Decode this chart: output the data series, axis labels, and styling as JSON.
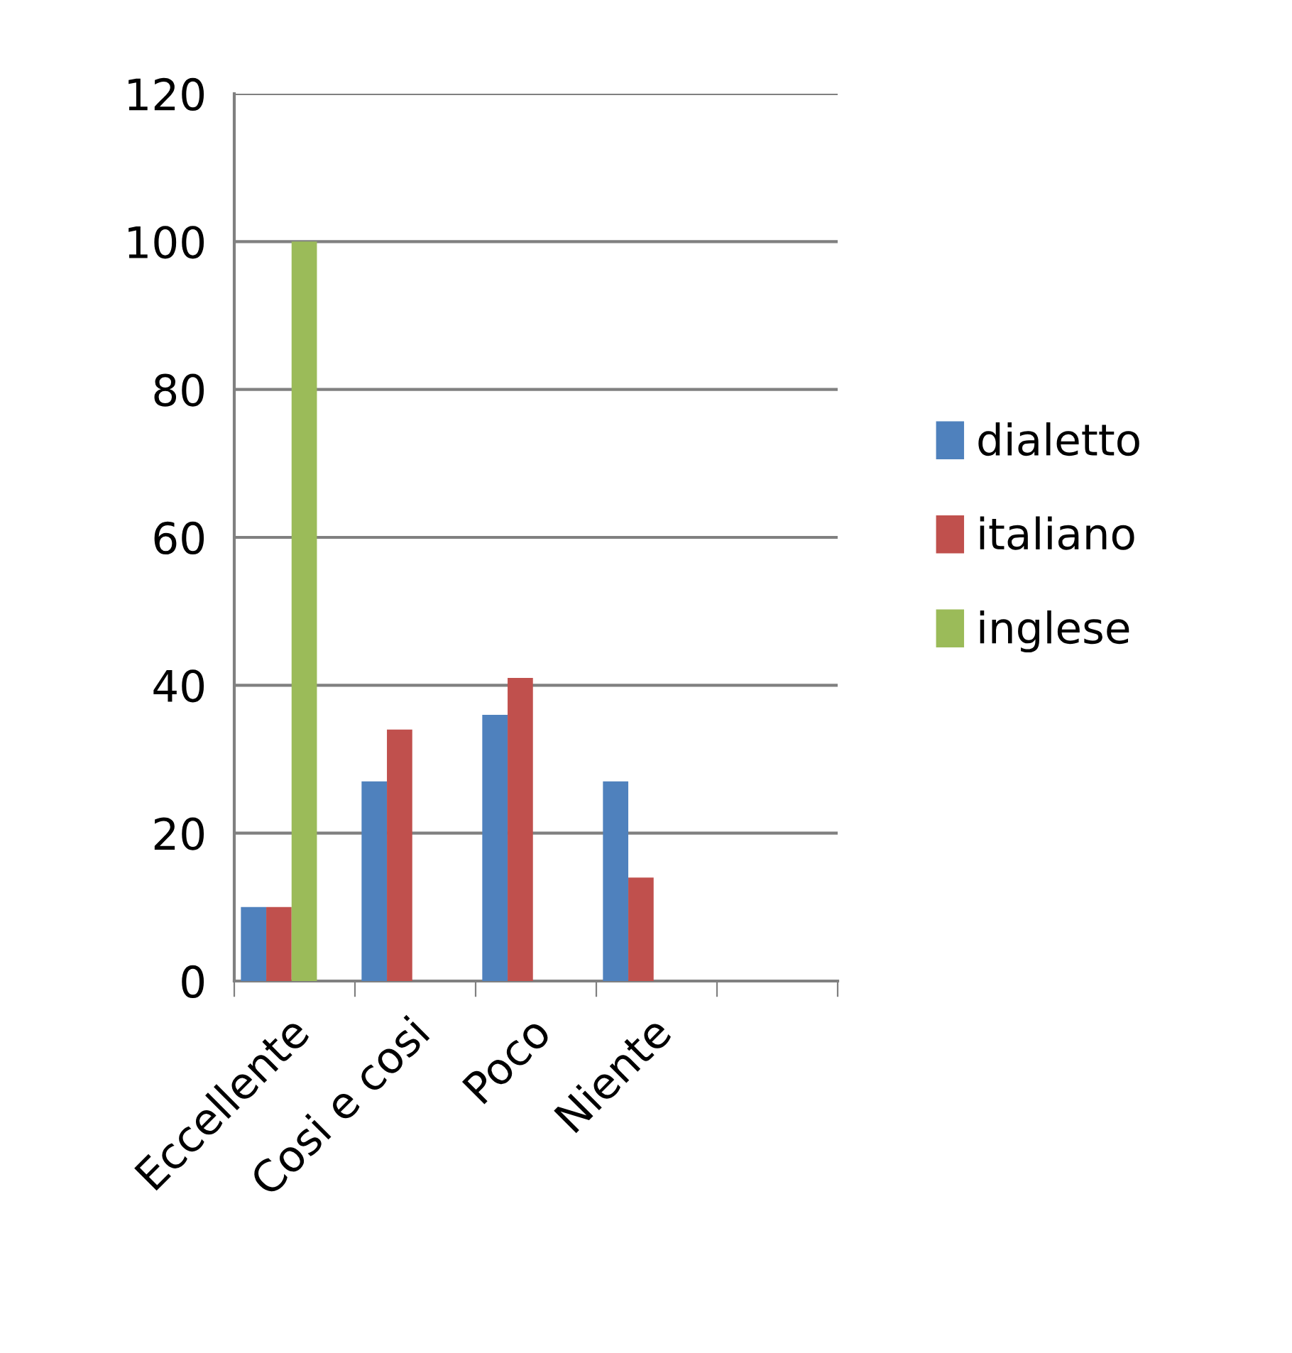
{
  "chart_data": {
    "type": "bar",
    "categories": [
      "Eccellente",
      "Cosi e cosi",
      "Poco",
      "Niente",
      null
    ],
    "series": [
      {
        "name": "dialetto",
        "color": "#4f81bd",
        "values": [
          10,
          27,
          36,
          27,
          null
        ]
      },
      {
        "name": "italiano",
        "color": "#c0504d",
        "values": [
          10,
          34,
          41,
          14,
          null
        ]
      },
      {
        "name": "inglese",
        "color": "#9bbb59",
        "values": [
          100,
          null,
          null,
          null,
          null
        ]
      }
    ],
    "ylim": [
      0,
      120
    ],
    "yticks": [
      0,
      20,
      40,
      60,
      80,
      100,
      120
    ],
    "grid": "y",
    "legend": "right"
  }
}
